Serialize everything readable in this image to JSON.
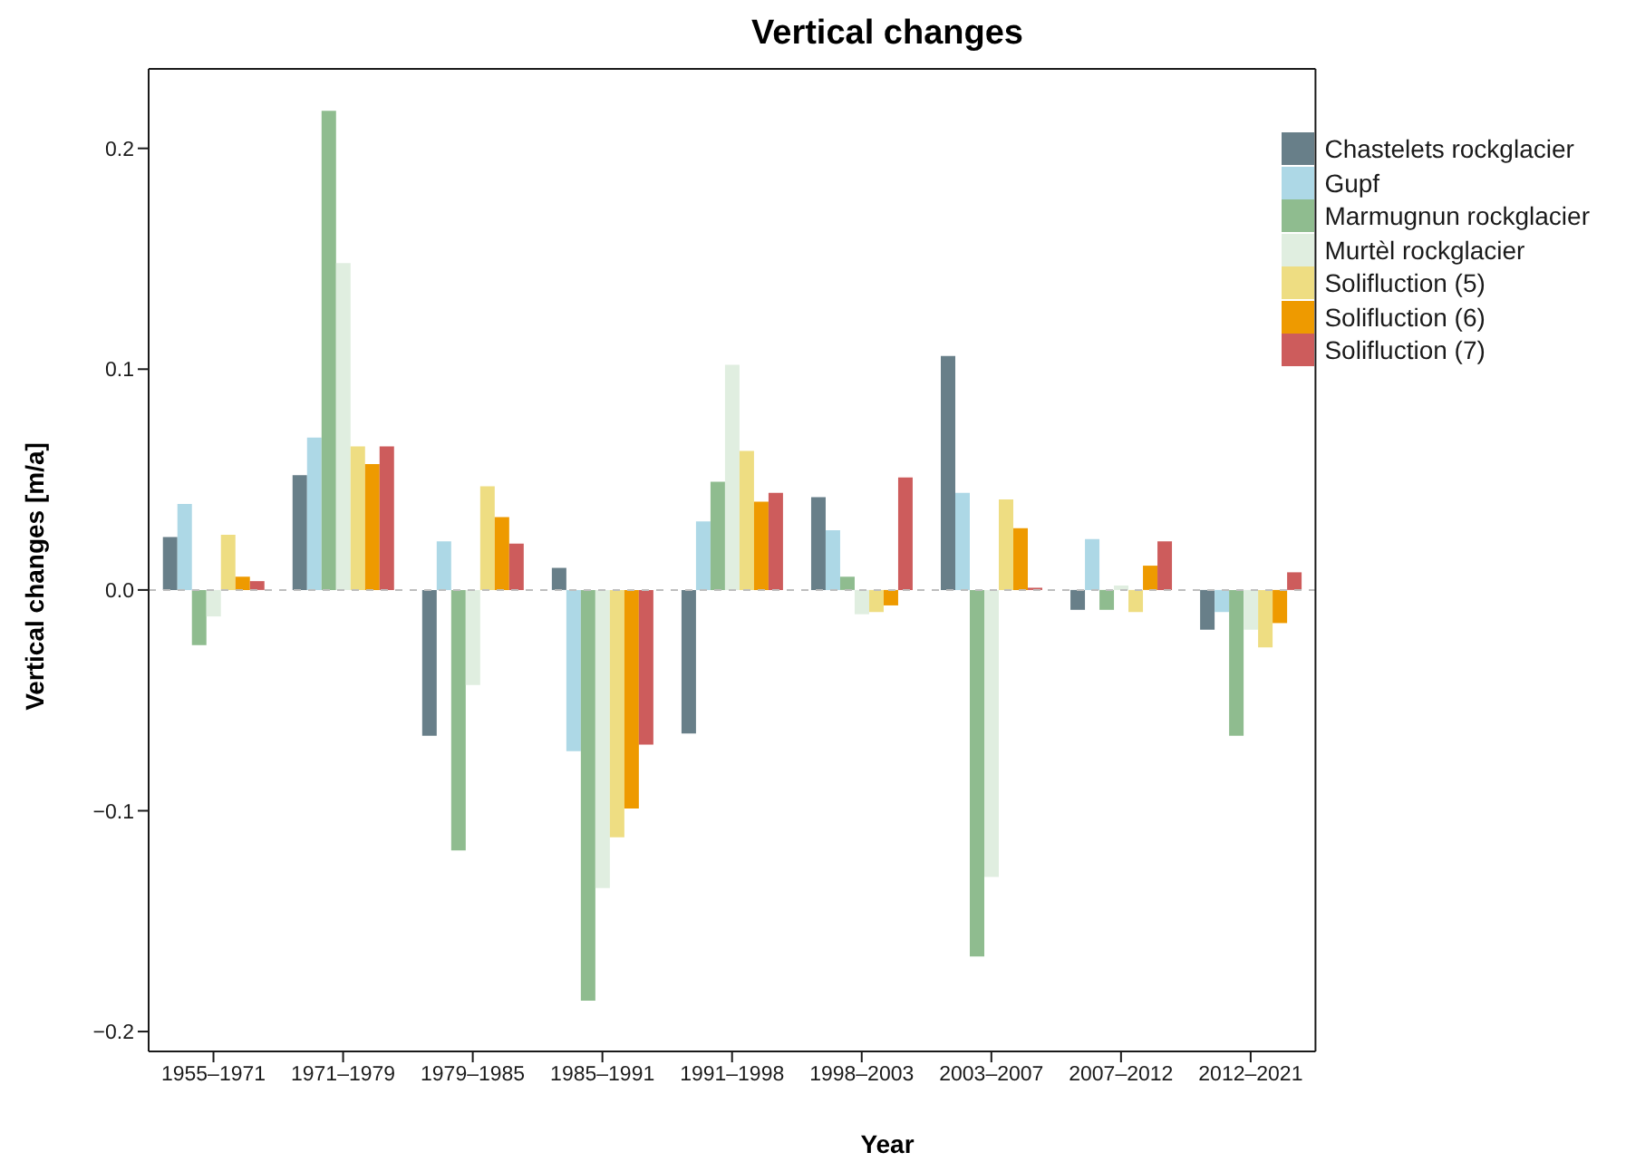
{
  "chart_data": {
    "type": "bar",
    "title": "Vertical changes",
    "xlabel": "Year",
    "ylabel": "Vertical changes [m/a]",
    "categories": [
      "1955–1971",
      "1971–1979",
      "1979–1985",
      "1985–1991",
      "1991–1998",
      "1998–2003",
      "2003–2007",
      "2007–2012",
      "2012–2021"
    ],
    "series": [
      {
        "name": "Chastelets rockglacier",
        "color": "#687f89",
        "values": [
          0.024,
          0.052,
          -0.066,
          0.01,
          -0.065,
          0.042,
          0.106,
          -0.009,
          -0.018
        ]
      },
      {
        "name": "Gupf",
        "color": "#add8e6",
        "values": [
          0.039,
          0.069,
          0.022,
          -0.073,
          0.031,
          0.027,
          0.044,
          0.023,
          -0.01
        ]
      },
      {
        "name": "Marmugnun rockglacier",
        "color": "#8fbc8f",
        "values": [
          -0.025,
          0.217,
          -0.118,
          -0.186,
          0.049,
          0.006,
          -0.166,
          -0.009,
          -0.066
        ]
      },
      {
        "name": "Murtèl rockglacier",
        "color": "#e0eee0",
        "values": [
          -0.012,
          0.148,
          -0.043,
          -0.135,
          0.102,
          -0.011,
          -0.13,
          0.002,
          -0.018
        ]
      },
      {
        "name": "Solifluction (5)",
        "color": "#eedd82",
        "values": [
          0.025,
          0.065,
          0.047,
          -0.112,
          0.063,
          -0.01,
          0.041,
          -0.01,
          -0.026
        ]
      },
      {
        "name": "Solifluction (6)",
        "color": "#ee9a00",
        "values": [
          0.006,
          0.057,
          0.033,
          -0.099,
          0.04,
          -0.007,
          0.028,
          0.011,
          -0.015
        ]
      },
      {
        "name": "Solifluction (7)",
        "color": "#cd5c5c",
        "values": [
          0.004,
          0.065,
          0.021,
          -0.07,
          0.044,
          0.051,
          0.001,
          0.022,
          0.008
        ]
      }
    ],
    "ylim": [
      -0.209,
      0.236
    ],
    "yticks": [
      {
        "value": -0.2,
        "label": "−0.2"
      },
      {
        "value": -0.1,
        "label": "−0.1"
      },
      {
        "value": 0,
        "label": "0.0"
      },
      {
        "value": 0.1,
        "label": "0.1"
      },
      {
        "value": 0.2,
        "label": "0.2"
      }
    ],
    "ref_lines": [
      {
        "axis": "y",
        "value": 0,
        "color": "#bebebe",
        "line_style": "dashed"
      }
    ],
    "grid": false,
    "legend": "top right"
  }
}
